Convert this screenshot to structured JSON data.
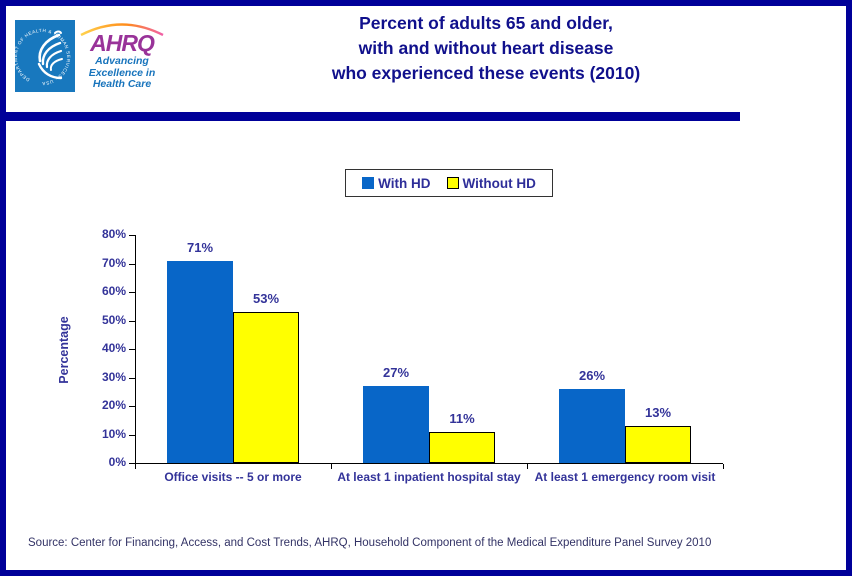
{
  "header": {
    "title_lines": [
      "Percent of adults 65 and older,",
      "with and without heart disease",
      "who experienced these events (2010)"
    ],
    "logo": {
      "hhs_circle_text": "DEPARTMENT OF HEALTH & HUMAN SERVICES · USA",
      "ahrq_acronym": "AHRQ",
      "tagline_lines": [
        "Advancing",
        "Excellence in",
        "Health Care"
      ]
    }
  },
  "legend": {
    "items": [
      {
        "label": "With HD",
        "color": "#0866C8",
        "border": "#0866C8"
      },
      {
        "label": "Without HD",
        "color": "#FFFF00",
        "border": "#000000"
      }
    ]
  },
  "chart_data": {
    "type": "bar",
    "categories": [
      "Office visits -- 5 or more",
      "At least 1 inpatient hospital stay",
      "At least 1 emergency room visit"
    ],
    "series": [
      {
        "name": "With HD",
        "color": "#0866C8",
        "outline": null,
        "values": [
          71,
          27,
          26
        ],
        "labels": [
          "71%",
          "27%",
          "26%"
        ]
      },
      {
        "name": "Without HD",
        "color": "#FFFF00",
        "outline": "#000000",
        "values": [
          53,
          11,
          13
        ],
        "labels": [
          "53%",
          "11%",
          "13%"
        ]
      }
    ],
    "title": "Percent of adults 65 and older, with and without heart disease who experienced these events (2010)",
    "xlabel": "",
    "ylabel": "Percentage",
    "ylim": [
      0,
      80
    ],
    "ytick_labels": [
      "0%",
      "10%",
      "20%",
      "30%",
      "40%",
      "50%",
      "60%",
      "70%",
      "80%"
    ],
    "grid": false,
    "legend_position": "top-center"
  },
  "footer": {
    "source": "Source: Center for Financing, Access, and Cost Trends, AHRQ, Household Component of the Medical Expenditure Panel Survey 2010"
  },
  "colors": {
    "frame_navy": "#000099",
    "title_navy": "#10108C",
    "label_indigo": "#333399",
    "bar_blue": "#0866C8",
    "bar_yellow": "#FFFF00",
    "hhs_blue": "#1878BE",
    "ahrq_purple": "#993399",
    "tagline_blue": "#1874BC",
    "source_text": "#333366"
  }
}
